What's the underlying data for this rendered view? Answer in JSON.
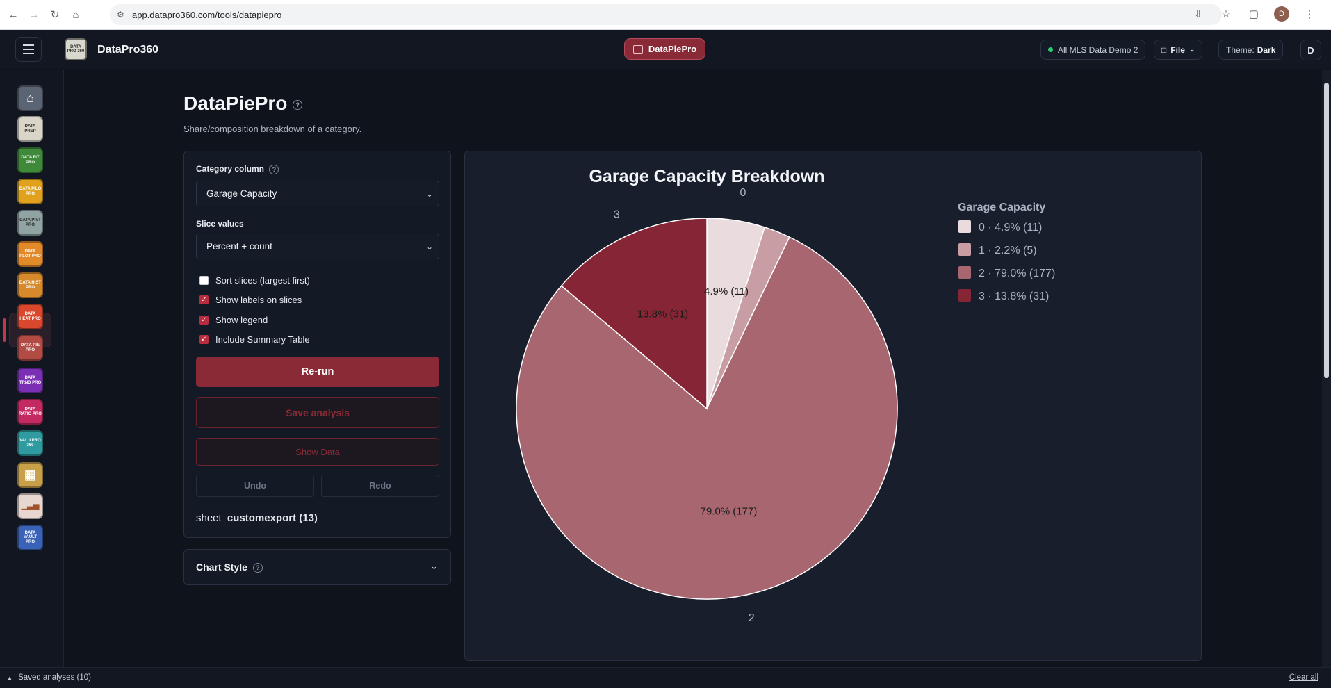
{
  "browser": {
    "url": "app.datapro360.com/tools/datapiepro",
    "profile_initial": "D"
  },
  "header": {
    "brand_logo_text": "DATA PRO 360",
    "brand_name": "DataPro360",
    "active_tool": "DataPiePro",
    "dataset_label": "All MLS Data Demo 2",
    "file_label": "File",
    "theme_label": "Theme:",
    "theme_value": "Dark",
    "user_initial": "D"
  },
  "sidebar": {
    "items": [
      {
        "name": "home",
        "text": "",
        "bg": "#5b6473"
      },
      {
        "name": "dataprep",
        "text": "DATA PREP",
        "bg": "#d9d6c9"
      },
      {
        "name": "datafitpro",
        "text": "DATA FIT PRO",
        "bg": "#3f8a3a"
      },
      {
        "name": "datapilotpro",
        "text": "DATA PILO PRO",
        "bg": "#e0a21c"
      },
      {
        "name": "datapivtpro",
        "text": "DATA PIVT PRO",
        "bg": "#8fa4a3"
      },
      {
        "name": "dataplotpro",
        "text": "DATA PLOT PRO",
        "bg": "#e28a2a"
      },
      {
        "name": "datahistpro",
        "text": "DATA HIST PRO",
        "bg": "#d68a2c"
      },
      {
        "name": "dataheatpro",
        "text": "DATA HEAT PRO",
        "bg": "#d9482c"
      },
      {
        "name": "datapiepro",
        "text": "DATA PIE PRO",
        "bg": "#b24b44"
      },
      {
        "name": "datatrndpro",
        "text": "DATA TRND PRO",
        "bg": "#7a2fb5"
      },
      {
        "name": "dataratiopro",
        "text": "DATA RATIO PRO",
        "bg": "#c42a62"
      },
      {
        "name": "valupro360",
        "text": "VALU PRO 360",
        "bg": "#2f9ba0"
      },
      {
        "name": "grid-tool",
        "text": "",
        "bg": "#c8a04a"
      },
      {
        "name": "bar-tool",
        "text": "",
        "bg": "#e7d7d0"
      },
      {
        "name": "datavaultpro",
        "text": "DATA VAULT PRO",
        "bg": "#3a63b8"
      }
    ]
  },
  "page": {
    "title": "DataPiePro",
    "subtitle": "Share/composition breakdown of a category."
  },
  "controls": {
    "category_label": "Category column",
    "category_value": "Garage Capacity",
    "slice_label": "Slice values",
    "slice_value": "Percent + count",
    "checks": [
      {
        "label": "Sort slices (largest first)",
        "checked": false
      },
      {
        "label": "Show labels on slices",
        "checked": true
      },
      {
        "label": "Show legend",
        "checked": true
      },
      {
        "label": "Include Summary Table",
        "checked": true
      }
    ],
    "rerun_label": "Re-run",
    "save_label": "Save analysis",
    "show_data_label": "Show Data",
    "undo_label": "Undo",
    "redo_label": "Redo",
    "sheet_prefix": "sheet",
    "sheet_name": "customexport (13)",
    "chart_style_label": "Chart Style"
  },
  "chart_data": {
    "type": "pie",
    "title": "Garage Capacity Breakdown",
    "legend_title": "Garage Capacity",
    "legend_position": "right",
    "categories": [
      "0",
      "1",
      "2",
      "3"
    ],
    "values": [
      11,
      5,
      177,
      31
    ],
    "percents": [
      4.9,
      2.2,
      79.0,
      13.8
    ],
    "slice_labels": [
      "4.9% (11)",
      "",
      "79.0% (177)",
      "13.8% (31)"
    ],
    "legend_labels": [
      "0 · 4.9% (11)",
      "1 · 2.2% (5)",
      "2 · 79.0% (177)",
      "3 · 13.8% (31)"
    ],
    "colors": [
      "#eadcde",
      "#c89ea4",
      "#a86670",
      "#852535"
    ]
  },
  "footer": {
    "saved_label": "Saved analyses (10)",
    "clear_label": "Clear all"
  }
}
